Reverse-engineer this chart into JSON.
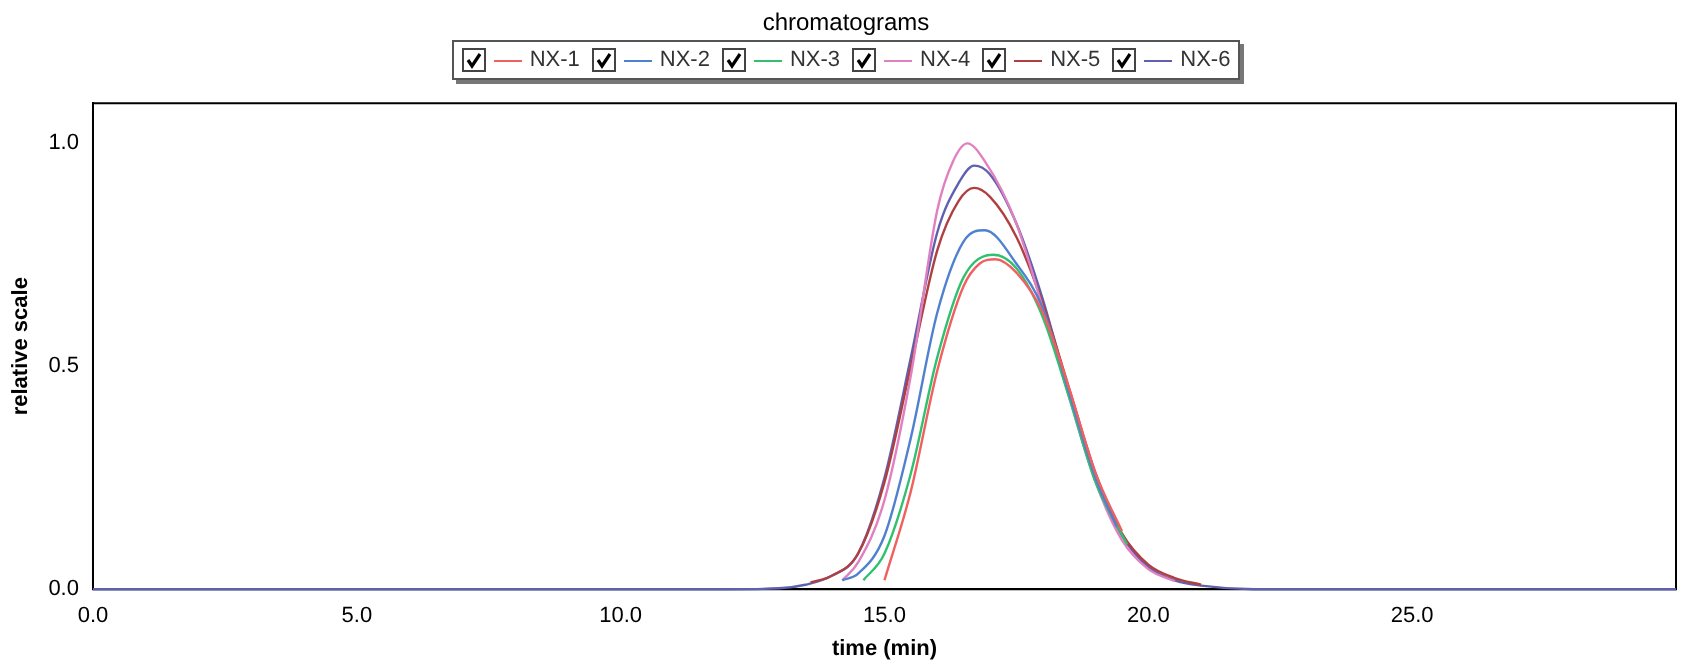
{
  "chart_data": {
    "type": "line",
    "title": "chromatograms",
    "xlabel": "time (min)",
    "ylabel": "relative scale",
    "series": [
      {
        "name": "NX-1",
        "color": "#f06060",
        "x": [
          15,
          15.5,
          16,
          16.5,
          16.8,
          17.1,
          17.5,
          18,
          18.5,
          19,
          19.5
        ],
        "values": [
          0.02,
          0.22,
          0.49,
          0.68,
          0.73,
          0.74,
          0.71,
          0.62,
          0.45,
          0.26,
          0.13
        ]
      },
      {
        "name": "NX-2",
        "color": "#5080d0",
        "x": [
          14.2,
          14.5,
          15,
          15.5,
          16,
          16.5,
          16.9,
          17.5,
          18,
          18.5,
          19,
          19.4
        ],
        "values": [
          0.02,
          0.035,
          0.12,
          0.34,
          0.62,
          0.78,
          0.805,
          0.73,
          0.63,
          0.44,
          0.25,
          0.14
        ]
      },
      {
        "name": "NX-3",
        "color": "#30c070",
        "x": [
          14.6,
          15,
          15.5,
          16,
          16.5,
          17.06,
          17.5,
          18,
          18.5,
          19,
          19.6
        ],
        "values": [
          0.02,
          0.08,
          0.26,
          0.52,
          0.7,
          0.75,
          0.72,
          0.61,
          0.43,
          0.24,
          0.1
        ]
      },
      {
        "name": "NX-4",
        "color": "#e080c0",
        "x": [
          14.2,
          14.5,
          15,
          15.5,
          16,
          16.3,
          16.57,
          16.9,
          17.5,
          18,
          18.5,
          19,
          19.5,
          20,
          20.5
        ],
        "values": [
          0.02,
          0.06,
          0.2,
          0.48,
          0.85,
          0.96,
          1,
          0.96,
          0.82,
          0.63,
          0.43,
          0.24,
          0.11,
          0.045,
          0.018
        ]
      },
      {
        "name": "NX-5",
        "color": "#b04040",
        "x": [
          13.6,
          14,
          14.5,
          15,
          15.5,
          16,
          16.4,
          16.7,
          17,
          17.5,
          18,
          18.5,
          19,
          19.5,
          20,
          20.5,
          21
        ],
        "values": [
          0.015,
          0.03,
          0.08,
          0.24,
          0.5,
          0.76,
          0.87,
          0.9,
          0.88,
          0.79,
          0.64,
          0.45,
          0.26,
          0.125,
          0.055,
          0.025,
          0.01
        ]
      },
      {
        "name": "NX-6",
        "color": "#6060b0",
        "x": [
          0,
          12,
          13,
          13.5,
          14,
          14.5,
          15,
          15.5,
          16,
          16.4,
          16.7,
          17,
          17.5,
          18,
          18.5,
          19,
          19.5,
          20,
          20.5,
          21,
          22,
          30
        ],
        "values": [
          0,
          0,
          0.002,
          0.01,
          0.03,
          0.08,
          0.25,
          0.52,
          0.8,
          0.91,
          0.95,
          0.93,
          0.82,
          0.65,
          0.44,
          0.25,
          0.12,
          0.05,
          0.02,
          0.008,
          0,
          0
        ]
      }
    ],
    "xlim": [
      0,
      30
    ],
    "xticks": [
      {
        "value": 0,
        "label": "0.0"
      },
      {
        "value": 5,
        "label": "5.0"
      },
      {
        "value": 10,
        "label": "10.0"
      },
      {
        "value": 15,
        "label": "15.0"
      },
      {
        "value": 20,
        "label": "20.0"
      },
      {
        "value": 25,
        "label": "25.0"
      }
    ],
    "ylim": [
      0,
      1.09
    ],
    "yticks": [
      {
        "value": 0,
        "label": "0.0"
      },
      {
        "value": 0.5,
        "label": "0.5"
      },
      {
        "value": 1,
        "label": "1.0"
      }
    ],
    "grid": false,
    "legend": "top",
    "marker": "none",
    "line_style": "solid"
  }
}
